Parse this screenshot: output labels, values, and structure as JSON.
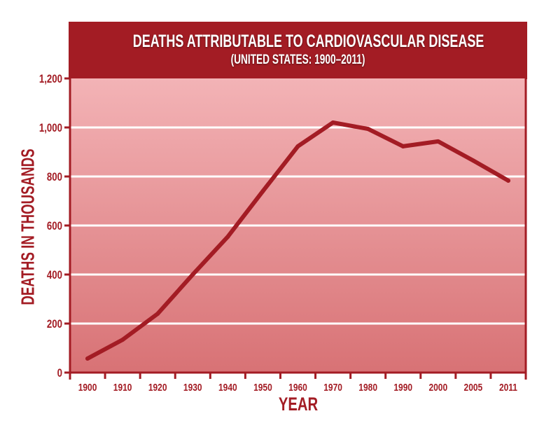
{
  "chart_data": {
    "type": "line",
    "title": "DEATHS ATTRIBUTABLE TO CARDIOVASCULAR DISEASE",
    "subtitle": "(UNITED STATES: 1900–2011)",
    "xlabel": "YEAR",
    "ylabel": "DEATHS IN THOUSANDS",
    "categories": [
      "1900",
      "1910",
      "1920",
      "1930",
      "1940",
      "1950",
      "1960",
      "1970",
      "1980",
      "1990",
      "2000",
      "2005",
      "2011"
    ],
    "yticks": [
      0,
      200,
      400,
      600,
      800,
      1000,
      1200
    ],
    "ytick_labels": [
      "0",
      "200",
      "400",
      "600",
      "800",
      "1,000",
      "1,200"
    ],
    "ylim": [
      0,
      1200
    ],
    "grid": true,
    "series": [
      {
        "name": "Deaths (thousands)",
        "values": [
          57,
          134,
          240,
          400,
          554,
          740,
          923,
          1020,
          994,
          923,
          943,
          865,
          783
        ]
      }
    ],
    "colors": {
      "header": "#a31c24",
      "line": "#a31c24",
      "axis": "#a31c24",
      "grid": "#ffffff",
      "plot_top": "#f3b3b6",
      "plot_bottom": "#d87275"
    }
  }
}
